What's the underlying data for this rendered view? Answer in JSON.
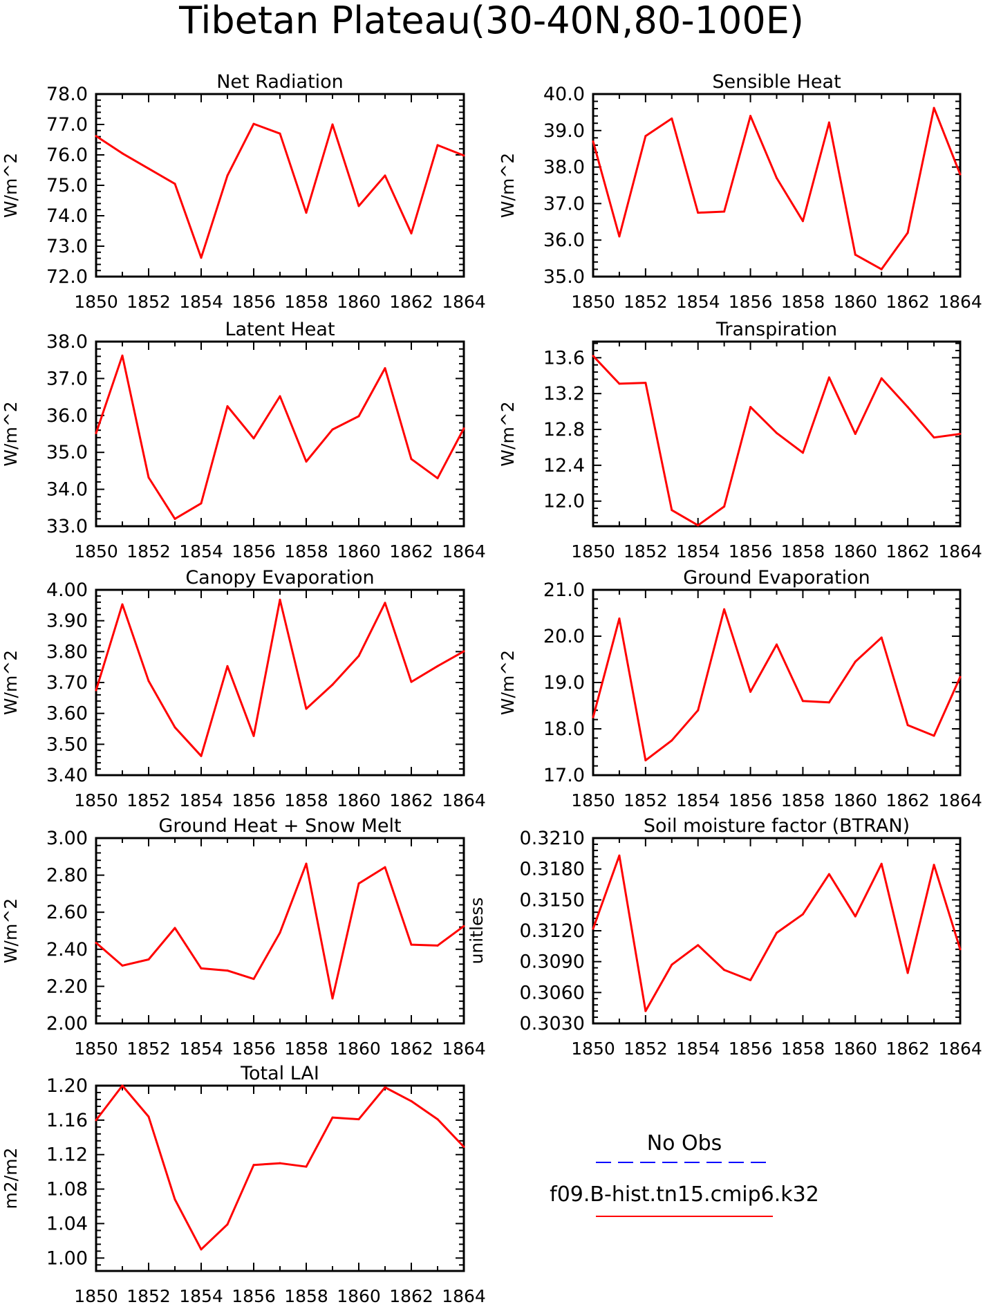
{
  "figure": {
    "title": "Tibetan Plateau(30-40N,80-100E)"
  },
  "legend": {
    "entries": [
      {
        "label": "No Obs",
        "color": "#0000ff",
        "style": "dashed"
      },
      {
        "label": "f09.B-hist.tn15.cmip6.k32",
        "color": "#ff0000",
        "style": "solid"
      }
    ]
  },
  "chart_data": [
    {
      "type": "line",
      "title": "Net Radiation",
      "xlabel": "",
      "ylabel": "W/m^2",
      "xlim": [
        1850,
        1864
      ],
      "ylim": [
        72.0,
        78.0
      ],
      "xticks": [
        1850,
        1852,
        1854,
        1856,
        1858,
        1860,
        1862,
        1864
      ],
      "yticks": [
        "72.0",
        "73.0",
        "74.0",
        "75.0",
        "76.0",
        "77.0",
        "78.0"
      ],
      "x": [
        1850,
        1851,
        1852,
        1853,
        1854,
        1855,
        1856,
        1857,
        1858,
        1859,
        1860,
        1861,
        1862,
        1863,
        1864
      ],
      "series": [
        {
          "color": "#ff0000",
          "values": [
            76.62,
            76.05,
            75.55,
            75.05,
            72.62,
            75.32,
            77.02,
            76.7,
            74.1,
            77.0,
            74.32,
            75.32,
            73.42,
            76.32,
            75.98
          ]
        }
      ]
    },
    {
      "type": "line",
      "title": "Sensible Heat",
      "xlabel": "",
      "ylabel": "W/m^2",
      "xlim": [
        1850,
        1864
      ],
      "ylim": [
        35.0,
        40.0
      ],
      "xticks": [
        1850,
        1852,
        1854,
        1856,
        1858,
        1860,
        1862,
        1864
      ],
      "yticks": [
        "35.0",
        "36.0",
        "37.0",
        "38.0",
        "39.0",
        "40.0"
      ],
      "x": [
        1850,
        1851,
        1852,
        1853,
        1854,
        1855,
        1856,
        1857,
        1858,
        1859,
        1860,
        1861,
        1862,
        1863,
        1864
      ],
      "series": [
        {
          "color": "#ff0000",
          "values": [
            38.7,
            36.1,
            38.85,
            39.33,
            36.75,
            36.78,
            39.4,
            37.7,
            36.52,
            39.22,
            35.6,
            35.2,
            36.2,
            39.62,
            37.8
          ]
        }
      ]
    },
    {
      "type": "line",
      "title": "Latent Heat",
      "xlabel": "",
      "ylabel": "W/m^2",
      "xlim": [
        1850,
        1864
      ],
      "ylim": [
        33.0,
        38.0
      ],
      "xticks": [
        1850,
        1852,
        1854,
        1856,
        1858,
        1860,
        1862,
        1864
      ],
      "yticks": [
        "33.0",
        "34.0",
        "35.0",
        "36.0",
        "37.0",
        "38.0"
      ],
      "x": [
        1850,
        1851,
        1852,
        1853,
        1854,
        1855,
        1856,
        1857,
        1858,
        1859,
        1860,
        1861,
        1862,
        1863,
        1864
      ],
      "series": [
        {
          "color": "#ff0000",
          "values": [
            35.52,
            37.62,
            34.32,
            33.2,
            33.62,
            36.25,
            35.38,
            36.52,
            34.75,
            35.62,
            35.98,
            37.28,
            34.82,
            34.3,
            35.65
          ]
        }
      ]
    },
    {
      "type": "line",
      "title": "Transpiration",
      "xlabel": "",
      "ylabel": "W/m^2",
      "xlim": [
        1850,
        1864
      ],
      "ylim": [
        11.72,
        13.78
      ],
      "xticks": [
        1850,
        1852,
        1854,
        1856,
        1858,
        1860,
        1862,
        1864
      ],
      "yticks": [
        "12.0",
        "12.4",
        "12.8",
        "13.2",
        "13.6"
      ],
      "x": [
        1850,
        1851,
        1852,
        1853,
        1854,
        1855,
        1856,
        1857,
        1858,
        1859,
        1860,
        1861,
        1862,
        1863,
        1864
      ],
      "series": [
        {
          "color": "#ff0000",
          "values": [
            13.62,
            13.31,
            13.32,
            11.9,
            11.73,
            11.94,
            13.05,
            12.76,
            12.54,
            13.38,
            12.75,
            13.37,
            13.05,
            12.71,
            12.75
          ]
        }
      ]
    },
    {
      "type": "line",
      "title": "Canopy Evaporation",
      "xlabel": "",
      "ylabel": "W/m^2",
      "xlim": [
        1850,
        1864
      ],
      "ylim": [
        3.4,
        4.0
      ],
      "xticks": [
        1850,
        1852,
        1854,
        1856,
        1858,
        1860,
        1862,
        1864
      ],
      "yticks": [
        "3.40",
        "3.50",
        "3.60",
        "3.70",
        "3.80",
        "3.90",
        "4.00"
      ],
      "x": [
        1850,
        1851,
        1852,
        1853,
        1854,
        1855,
        1856,
        1857,
        1858,
        1859,
        1860,
        1861,
        1862,
        1863,
        1864
      ],
      "series": [
        {
          "color": "#ff0000",
          "values": [
            3.675,
            3.953,
            3.705,
            3.555,
            3.462,
            3.753,
            3.527,
            3.968,
            3.615,
            3.693,
            3.786,
            3.958,
            3.702,
            3.753,
            3.801
          ]
        }
      ]
    },
    {
      "type": "line",
      "title": "Ground Evaporation",
      "xlabel": "",
      "ylabel": "W/m^2",
      "xlim": [
        1850,
        1864
      ],
      "ylim": [
        17.0,
        21.0
      ],
      "xticks": [
        1850,
        1852,
        1854,
        1856,
        1858,
        1860,
        1862,
        1864
      ],
      "yticks": [
        "17.0",
        "18.0",
        "19.0",
        "20.0",
        "21.0"
      ],
      "x": [
        1850,
        1851,
        1852,
        1853,
        1854,
        1855,
        1856,
        1857,
        1858,
        1859,
        1860,
        1861,
        1862,
        1863,
        1864
      ],
      "series": [
        {
          "color": "#ff0000",
          "values": [
            18.25,
            20.38,
            17.32,
            17.75,
            18.4,
            20.58,
            18.8,
            19.82,
            18.6,
            18.57,
            19.45,
            19.97,
            18.08,
            17.85,
            19.12
          ]
        }
      ]
    },
    {
      "type": "line",
      "title": "Ground Heat + Snow Melt",
      "xlabel": "",
      "ylabel": "W/m^2",
      "xlim": [
        1850,
        1864
      ],
      "ylim": [
        2.0,
        3.0
      ],
      "xticks": [
        1850,
        1852,
        1854,
        1856,
        1858,
        1860,
        1862,
        1864
      ],
      "yticks": [
        "2.00",
        "2.20",
        "2.40",
        "2.60",
        "2.80",
        "3.00"
      ],
      "x": [
        1850,
        1851,
        1852,
        1853,
        1854,
        1855,
        1856,
        1857,
        1858,
        1859,
        1860,
        1861,
        1862,
        1863,
        1864
      ],
      "series": [
        {
          "color": "#ff0000",
          "values": [
            2.435,
            2.312,
            2.345,
            2.515,
            2.297,
            2.285,
            2.24,
            2.49,
            2.862,
            2.135,
            2.755,
            2.843,
            2.425,
            2.42,
            2.525
          ]
        }
      ]
    },
    {
      "type": "line",
      "title": "Soil moisture factor (BTRAN)",
      "xlabel": "",
      "ylabel": "unitless",
      "xlim": [
        1850,
        1864
      ],
      "ylim": [
        0.303,
        0.321
      ],
      "xticks": [
        1850,
        1852,
        1854,
        1856,
        1858,
        1860,
        1862,
        1864
      ],
      "yticks": [
        "0.3030",
        "0.3060",
        "0.3090",
        "0.3120",
        "0.3150",
        "0.3180",
        "0.3210"
      ],
      "x": [
        1850,
        1851,
        1852,
        1853,
        1854,
        1855,
        1856,
        1857,
        1858,
        1859,
        1860,
        1861,
        1862,
        1863,
        1864
      ],
      "series": [
        {
          "color": "#ff0000",
          "values": [
            0.3122,
            0.3193,
            0.3042,
            0.3087,
            0.3106,
            0.3082,
            0.3072,
            0.3118,
            0.3136,
            0.3175,
            0.3134,
            0.3185,
            0.3079,
            0.3184,
            0.3102
          ]
        }
      ]
    },
    {
      "type": "line",
      "title": "Total LAI",
      "xlabel": "",
      "ylabel": "m2/m2",
      "xlim": [
        1850,
        1864
      ],
      "ylim": [
        0.985,
        1.2
      ],
      "xticks": [
        1850,
        1852,
        1854,
        1856,
        1858,
        1860,
        1862,
        1864
      ],
      "yticks": [
        "1.00",
        "1.04",
        "1.08",
        "1.12",
        "1.16",
        "1.20"
      ],
      "x": [
        1850,
        1851,
        1852,
        1853,
        1854,
        1855,
        1856,
        1857,
        1858,
        1859,
        1860,
        1861,
        1862,
        1863,
        1864
      ],
      "series": [
        {
          "color": "#ff0000",
          "values": [
            1.16,
            1.2,
            1.164,
            1.068,
            1.01,
            1.039,
            1.108,
            1.11,
            1.106,
            1.163,
            1.161,
            1.198,
            1.182,
            1.161,
            1.129
          ]
        }
      ]
    }
  ]
}
